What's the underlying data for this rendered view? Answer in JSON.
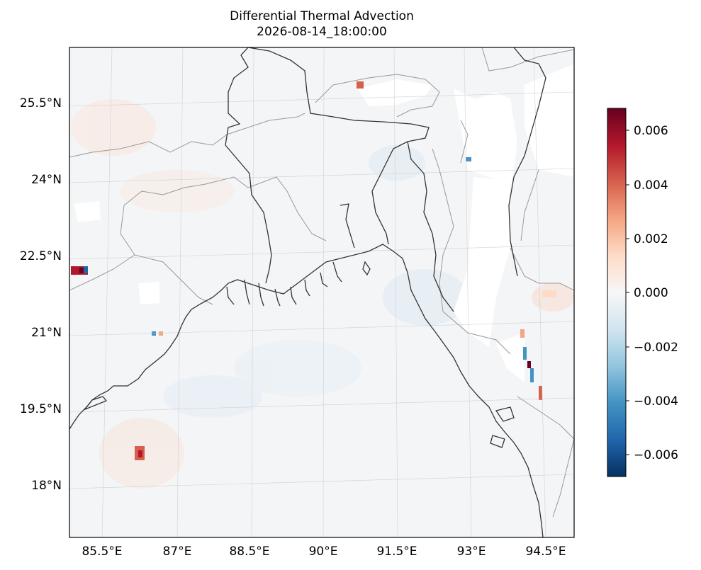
{
  "title": {
    "line1": "Differential Thermal Advection",
    "line2": "2026-08-14_18:00:00"
  },
  "map": {
    "region": "Bay of Bengal / Bangladesh",
    "latitude_labels": [
      "25.5°N",
      "24°N",
      "22.5°N",
      "21°N",
      "19.5°N",
      "18°N"
    ],
    "longitude_labels": [
      "85.5°E",
      "87°E",
      "88.5°E",
      "90°E",
      "91.5°E",
      "93°E",
      "94.5°E"
    ],
    "lon_range": [
      84.85,
      94.85
    ],
    "lat_range": [
      16.95,
      26.6
    ],
    "gridlines": true
  },
  "colorbar": {
    "colormap": "RdBu_r",
    "range": [
      -0.0068,
      0.0068
    ],
    "tick_labels": [
      "0.006",
      "0.004",
      "0.002",
      "0.000",
      "−0.002",
      "−0.004",
      "−0.006"
    ],
    "colors": [
      "#053061",
      "#2166ac",
      "#4393c3",
      "#92c5de",
      "#d1e5f0",
      "#f7f7f7",
      "#fddbc7",
      "#f4a582",
      "#d6604d",
      "#b2182b",
      "#67001f"
    ]
  },
  "features": {
    "coastline_color": "#333333",
    "border_color": "#999999"
  }
}
